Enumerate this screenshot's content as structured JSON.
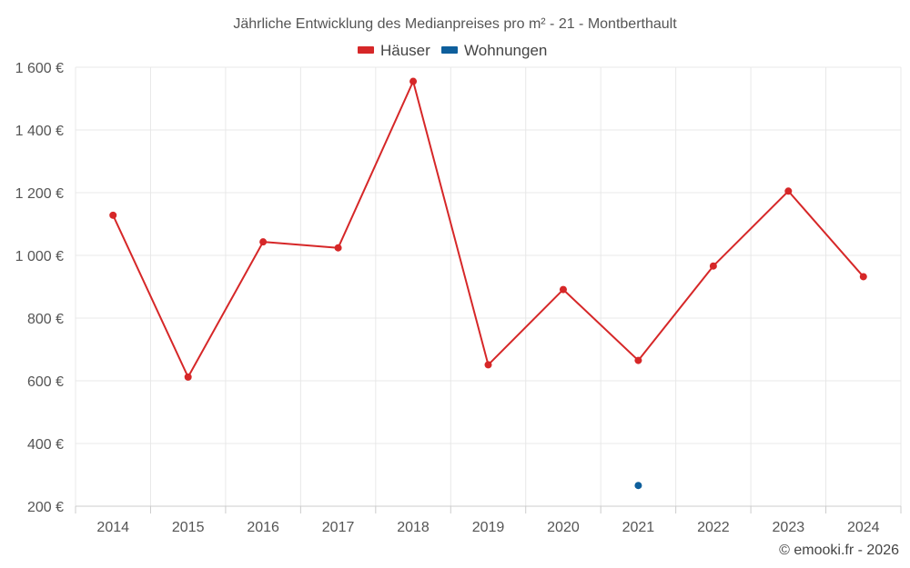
{
  "chart_data": {
    "type": "line",
    "title": "Jährliche Entwicklung des Medianpreises pro m² - 21 - Montberthault",
    "categories": [
      "2014",
      "2015",
      "2016",
      "2017",
      "2018",
      "2019",
      "2020",
      "2021",
      "2022",
      "2023",
      "2024"
    ],
    "series": [
      {
        "name": "Häuser",
        "color": "#d62728",
        "values": [
          1128,
          612,
          1043,
          1024,
          1555,
          651,
          891,
          665,
          966,
          1205,
          932
        ]
      },
      {
        "name": "Wohnungen",
        "color": "#0e5f9c",
        "values": [
          null,
          null,
          null,
          null,
          null,
          null,
          null,
          266,
          null,
          null,
          null
        ]
      }
    ],
    "ylim": [
      200,
      1600
    ],
    "yticks": [
      200,
      400,
      600,
      800,
      1000,
      1200,
      1400,
      1600
    ],
    "ytick_labels": [
      "200 €",
      "400 €",
      "600 €",
      "800 €",
      "1 000 €",
      "1 200 €",
      "1 400 €",
      "1 600 €"
    ],
    "grid": true,
    "legend_position": "top-center",
    "xlabel": "",
    "ylabel": ""
  },
  "credit": "© emooki.fr - 2026"
}
